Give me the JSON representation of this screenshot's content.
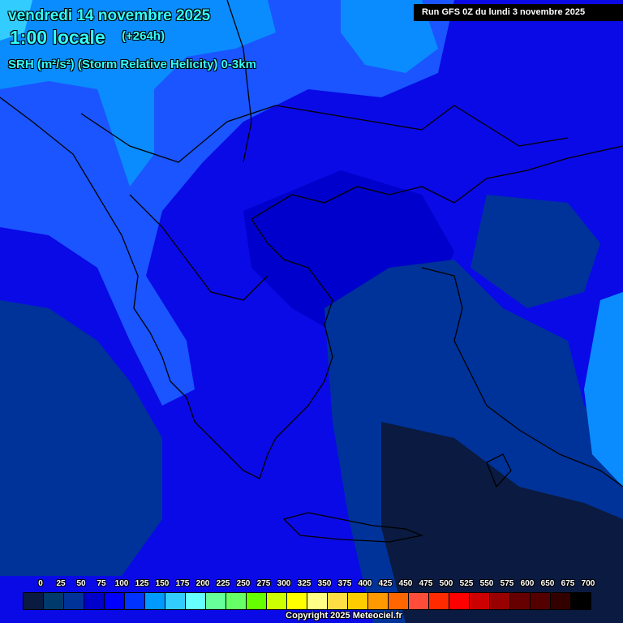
{
  "header": {
    "date": "vendredi 14 novembre 2025",
    "hour": "1:00 locale",
    "lead": "(+264h)",
    "parameter": "SRH (m²/s²) (Storm Relative Helicity) 0-3km",
    "run": "Run GFS 0Z du lundi 3 novembre 2025"
  },
  "legend": {
    "labels": [
      "0",
      "25",
      "50",
      "75",
      "100",
      "125",
      "150",
      "175",
      "200",
      "225",
      "250",
      "275",
      "300",
      "325",
      "350",
      "375",
      "400",
      "425",
      "450",
      "475",
      "500",
      "525",
      "550",
      "575",
      "600",
      "650",
      "675",
      "700"
    ],
    "colors": [
      "#0a1a40",
      "#003a6a",
      "#003399",
      "#0000cc",
      "#0000ff",
      "#0033ff",
      "#0099ff",
      "#33ccff",
      "#66ffff",
      "#66ff99",
      "#66ff66",
      "#66ff00",
      "#ccff00",
      "#ffff00",
      "#ffff88",
      "#ffdd44",
      "#ffcc00",
      "#ff9900",
      "#ff6600",
      "#ff4d3a",
      "#ff2a00",
      "#ff0000",
      "#cc0000",
      "#990000",
      "#660000",
      "#550000",
      "#330000",
      "#000000"
    ]
  },
  "copyright": "Copyright 2025 Meteociel.fr"
}
